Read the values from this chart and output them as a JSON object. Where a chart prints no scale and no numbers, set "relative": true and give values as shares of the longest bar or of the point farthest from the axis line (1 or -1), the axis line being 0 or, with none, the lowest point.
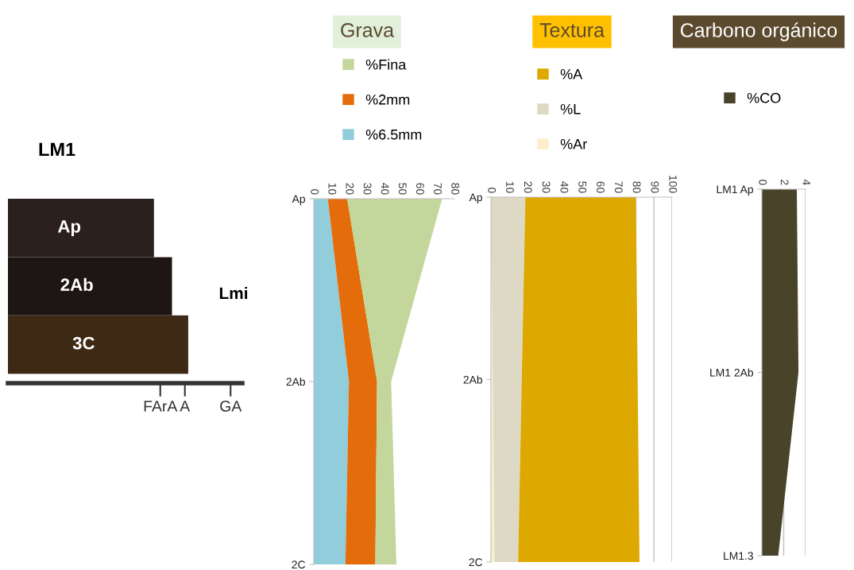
{
  "chart_data": [
    {
      "type": "bar",
      "orientation": "horizontal",
      "relative": true,
      "title": "LM1",
      "categories": [
        "Ap",
        "2Ab",
        "3C"
      ],
      "values": [
        0.81,
        0.91,
        1.0
      ],
      "colors": [
        "#2b201e",
        "#1e1614",
        "#3d2914"
      ],
      "annotations": [
        "Lmi",
        "FArA",
        "A",
        "GA"
      ]
    },
    {
      "type": "area",
      "orientation": "horizontal",
      "stacked": true,
      "title": "Grava",
      "categories": [
        "Ap",
        "2Ab",
        "2C"
      ],
      "legend": "top",
      "xlim": [
        0,
        80
      ],
      "xticks": [
        0,
        10,
        20,
        30,
        40,
        50,
        60,
        70,
        80
      ],
      "series": [
        {
          "name": "%6.5mm",
          "color": "#92cddc",
          "values": [
            8,
            20,
            18
          ]
        },
        {
          "name": "%2mm",
          "color": "#e46c0a",
          "values": [
            11,
            16,
            17
          ]
        },
        {
          "name": "%Fina",
          "color": "#c3d69b",
          "values": [
            54,
            8,
            12
          ]
        }
      ]
    },
    {
      "type": "area",
      "orientation": "horizontal",
      "stacked": true,
      "title": "Textura",
      "categories": [
        "Ap",
        "2Ab",
        "2C"
      ],
      "legend": "top",
      "grid": "x",
      "xlim": [
        0,
        100
      ],
      "xticks": [
        0,
        10,
        20,
        30,
        40,
        50,
        60,
        70,
        80,
        90,
        100
      ],
      "series": [
        {
          "name": "%Ar",
          "color": "#fdeecb",
          "values": [
            0,
            1,
            2
          ]
        },
        {
          "name": "%L",
          "color": "#ddd9c4",
          "values": [
            19,
            16,
            13
          ]
        },
        {
          "name": "%A",
          "color": "#dda800",
          "values": [
            61,
            64,
            67
          ]
        }
      ]
    },
    {
      "type": "area",
      "orientation": "horizontal",
      "stacked": true,
      "title": "Carbono orgánico",
      "categories": [
        "LM1 Ap",
        "LM1 2Ab",
        "LM1.3"
      ],
      "legend": "top",
      "grid": "x",
      "xlim": [
        0,
        4
      ],
      "xticks": [
        0,
        2,
        4
      ],
      "series": [
        {
          "name": "%CO",
          "color": "#49432a",
          "values": [
            3.2,
            3.35,
            1.5
          ]
        }
      ]
    }
  ]
}
